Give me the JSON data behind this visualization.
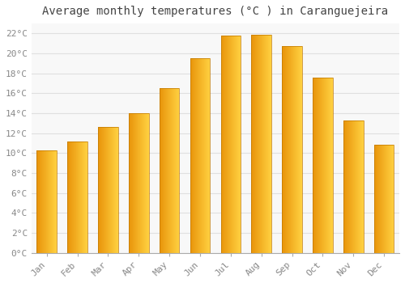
{
  "title": "Average monthly temperatures (°C ) in Caranguejeira",
  "months": [
    "Jan",
    "Feb",
    "Mar",
    "Apr",
    "May",
    "Jun",
    "Jul",
    "Aug",
    "Sep",
    "Oct",
    "Nov",
    "Dec"
  ],
  "temperatures": [
    10.3,
    11.2,
    12.6,
    14.0,
    16.5,
    19.5,
    21.8,
    21.9,
    20.7,
    17.6,
    13.3,
    10.8
  ],
  "bar_color_left": "#E8940A",
  "bar_color_right": "#FFD040",
  "bar_edge_color": "#C07800",
  "ylim": [
    0,
    23
  ],
  "yticks": [
    0,
    2,
    4,
    6,
    8,
    10,
    12,
    14,
    16,
    18,
    20,
    22
  ],
  "ytick_labels": [
    "0°C",
    "2°C",
    "4°C",
    "6°C",
    "8°C",
    "10°C",
    "12°C",
    "14°C",
    "16°C",
    "18°C",
    "20°C",
    "22°C"
  ],
  "background_color": "#FFFFFF",
  "plot_bg_color": "#F8F8F8",
  "grid_color": "#E0E0E0",
  "title_fontsize": 10,
  "tick_fontsize": 8,
  "title_color": "#444444",
  "tick_color": "#888888",
  "bar_width": 0.65,
  "figsize": [
    5.0,
    3.5
  ],
  "dpi": 100
}
